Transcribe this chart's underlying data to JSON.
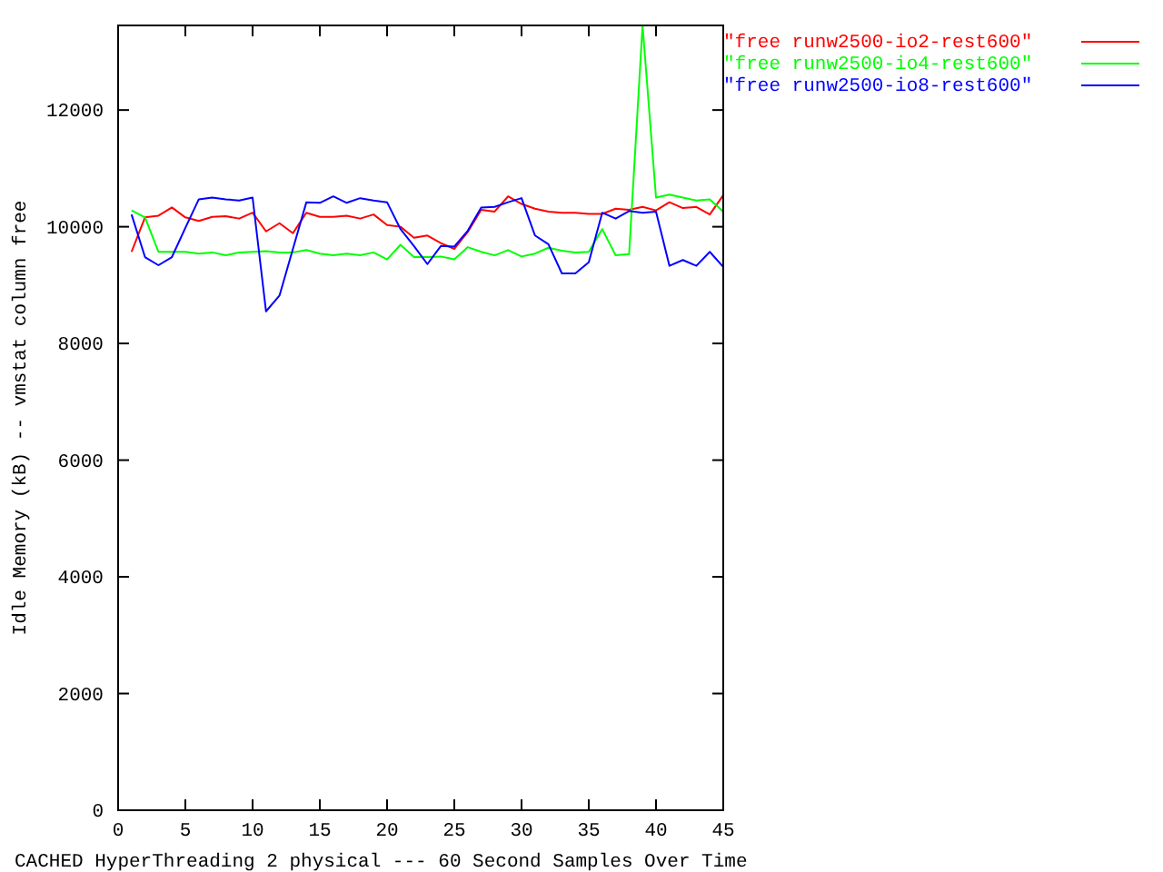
{
  "chart_data": {
    "type": "line",
    "xlabel": "CACHED HyperThreading 2 physical --- 60 Second Samples Over Time",
    "ylabel": "Idle Memory (kB) -- vmstat column free",
    "x": [
      1,
      2,
      3,
      4,
      5,
      6,
      7,
      8,
      9,
      10,
      11,
      12,
      13,
      14,
      15,
      16,
      17,
      18,
      19,
      20,
      21,
      22,
      23,
      24,
      25,
      26,
      27,
      28,
      29,
      30,
      31,
      32,
      33,
      34,
      35,
      36,
      37,
      38,
      39,
      40,
      41,
      42,
      43,
      44,
      45
    ],
    "series": [
      {
        "name": "\"free runw2500-io2-rest600\"",
        "color": "#ff0000",
        "values": [
          9570,
          10160,
          10190,
          10330,
          10160,
          10100,
          10170,
          10180,
          10140,
          10240,
          9920,
          10060,
          9890,
          10240,
          10170,
          10170,
          10190,
          10140,
          10210,
          10030,
          10000,
          9810,
          9850,
          9720,
          9620,
          9910,
          10290,
          10260,
          10520,
          10390,
          10310,
          10260,
          10240,
          10240,
          10220,
          10220,
          10310,
          10290,
          10340,
          10280,
          10420,
          10320,
          10340,
          10210,
          10540
        ]
      },
      {
        "name": "\"free runw2500-io4-rest600\"",
        "color": "#00ff00",
        "values": [
          10280,
          10160,
          9570,
          9570,
          9570,
          9540,
          9560,
          9510,
          9560,
          9570,
          9580,
          9560,
          9560,
          9600,
          9540,
          9510,
          9540,
          9510,
          9560,
          9440,
          9690,
          9480,
          9480,
          9490,
          9440,
          9650,
          9570,
          9510,
          9600,
          9490,
          9540,
          9640,
          9590,
          9560,
          9570,
          9960,
          9510,
          9530,
          13450,
          10500,
          10550,
          10500,
          10450,
          10470,
          10260
        ]
      },
      {
        "name": "\"free runw2500-io8-rest600\"",
        "color": "#0000ff",
        "values": [
          10210,
          9480,
          9340,
          9480,
          9980,
          10470,
          10500,
          10470,
          10450,
          10500,
          8550,
          8820,
          9620,
          10420,
          10410,
          10520,
          10410,
          10490,
          10450,
          10420,
          9960,
          9670,
          9360,
          9670,
          9660,
          9930,
          10330,
          10340,
          10420,
          10490,
          9850,
          9700,
          9200,
          9200,
          9390,
          10240,
          10140,
          10270,
          10240,
          10260,
          9330,
          9430,
          9330,
          9570,
          9310
        ]
      }
    ],
    "xlim": [
      0,
      45
    ],
    "xticks": [
      0,
      5,
      10,
      15,
      20,
      25,
      30,
      35,
      40,
      45
    ],
    "ylim": [
      0,
      13450
    ],
    "yticks": [
      0,
      2000,
      4000,
      6000,
      8000,
      10000,
      12000
    ],
    "legend": "top right",
    "grid": false
  }
}
